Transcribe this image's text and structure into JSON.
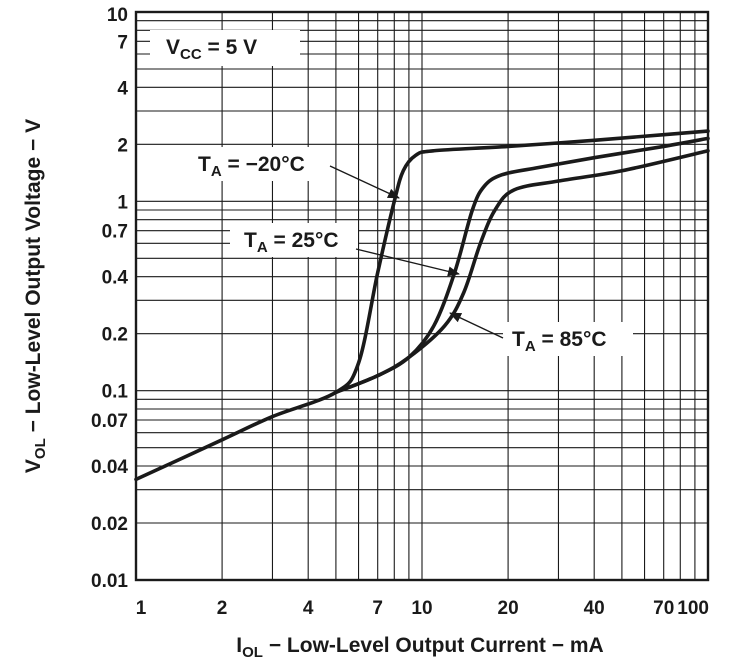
{
  "chart_data": {
    "type": "line",
    "x_scale": "log",
    "y_scale": "log",
    "xlim": [
      1,
      100
    ],
    "ylim": [
      0.01,
      10
    ],
    "x_ticks": [
      1,
      2,
      4,
      7,
      10,
      20,
      40,
      70,
      100
    ],
    "x_tick_labels": [
      "1",
      "2",
      "4",
      "7",
      "10",
      "20",
      "40",
      "70",
      "100"
    ],
    "y_ticks": [
      0.01,
      0.02,
      0.04,
      0.07,
      0.1,
      0.2,
      0.4,
      0.7,
      1,
      2,
      4,
      7,
      10
    ],
    "y_tick_labels": [
      "0.01",
      "0.02",
      "0.04",
      "0.07",
      "0.1",
      "0.2",
      "0.4",
      "0.7",
      "1",
      "2",
      "4",
      "7",
      "10"
    ],
    "x_grid": [
      1,
      2,
      3,
      4,
      5,
      6,
      7,
      8,
      9,
      10,
      20,
      30,
      40,
      50,
      60,
      70,
      80,
      90,
      100
    ],
    "y_grid": [
      0.01,
      0.02,
      0.03,
      0.04,
      0.05,
      0.06,
      0.07,
      0.08,
      0.09,
      0.1,
      0.2,
      0.3,
      0.4,
      0.5,
      0.6,
      0.7,
      0.8,
      0.9,
      1,
      2,
      3,
      4,
      5,
      6,
      7,
      8,
      9,
      10
    ],
    "xlabel": {
      "main": "I",
      "sub": "OL",
      "rest": " − Low-Level Output Current − mA"
    },
    "ylabel": {
      "main": "V",
      "sub": "OL",
      "rest": " − Low-Level Output Voltage − V"
    },
    "grid": true,
    "series": [
      {
        "name": "TA = −20°C",
        "points": [
          [
            1,
            0.034
          ],
          [
            2,
            0.055
          ],
          [
            3,
            0.073
          ],
          [
            5,
            0.098
          ],
          [
            6,
            0.14
          ],
          [
            7,
            0.42
          ],
          [
            8,
            1.0
          ],
          [
            8.6,
            1.45
          ],
          [
            9.5,
            1.75
          ],
          [
            11,
            1.85
          ],
          [
            20,
            1.95
          ],
          [
            40,
            2.1
          ],
          [
            70,
            2.25
          ],
          [
            100,
            2.35
          ]
        ]
      },
      {
        "name": "TA = 25°C",
        "points": [
          [
            5,
            0.098
          ],
          [
            7,
            0.12
          ],
          [
            9,
            0.15
          ],
          [
            11,
            0.22
          ],
          [
            13,
            0.42
          ],
          [
            15,
            0.9
          ],
          [
            16.5,
            1.2
          ],
          [
            19,
            1.38
          ],
          [
            25,
            1.5
          ],
          [
            40,
            1.7
          ],
          [
            70,
            1.95
          ],
          [
            100,
            2.15
          ]
        ]
      },
      {
        "name": "TA = 85°C",
        "points": [
          [
            5,
            0.098
          ],
          [
            7,
            0.12
          ],
          [
            9,
            0.15
          ],
          [
            12,
            0.22
          ],
          [
            14,
            0.33
          ],
          [
            16,
            0.6
          ],
          [
            18,
            0.9
          ],
          [
            21,
            1.15
          ],
          [
            30,
            1.28
          ],
          [
            50,
            1.45
          ],
          [
            100,
            1.85
          ]
        ]
      }
    ],
    "annotations": [
      {
        "id": "vcc",
        "main": "V",
        "sub": "CC",
        "rest": " = 5 V"
      },
      {
        "id": "ta_m20",
        "main": "T",
        "sub": "A",
        "rest": " = −20°C"
      },
      {
        "id": "ta_25",
        "main": "T",
        "sub": "A",
        "rest": " = 25°C"
      },
      {
        "id": "ta_85",
        "main": "T",
        "sub": "A",
        "rest": " = 85°C"
      }
    ]
  }
}
